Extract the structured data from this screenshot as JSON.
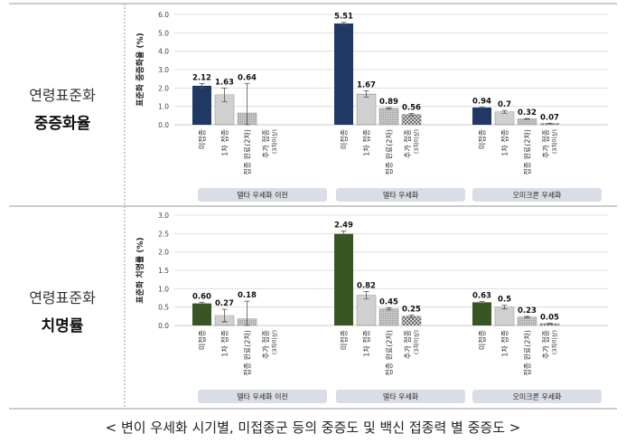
{
  "caption": "< 변이 우세화 시기별, 미접종군 등의 중증도 및 백신 접종력 별 중증도 >",
  "colors": {
    "severe_unvaccinated": "#1f3864",
    "death_unvaccinated": "#375623",
    "panel_label_bg": "#d9dde6",
    "error_bar": "#555555"
  },
  "charts": [
    {
      "row_label_line1": "연령표준화",
      "row_label_line2": "중증화율",
      "ylabel": "표준화 중증화율 (%)",
      "ylim": [
        0,
        6.0
      ],
      "yticks": [
        "6.0",
        "5.0",
        "4.0",
        "3.0",
        "2.0",
        "1.0",
        "0.0"
      ],
      "categories": [
        "미접종",
        "1차 접종",
        "접종 완료(2차)",
        "추가 접종(3차이상)"
      ],
      "category_lines": [
        [
          "미접종"
        ],
        [
          "1차 접종"
        ],
        [
          "접종 완료(2차)"
        ],
        [
          "추가 접종",
          "(3차이상)"
        ]
      ],
      "panels": [
        {
          "name": "델타 우세화 이전",
          "values": [
            2.12,
            1.63,
            0.64,
            null
          ],
          "labels": [
            "2.12",
            "1.63",
            "0.64",
            ""
          ],
          "err": [
            [
              2.0,
              2.24
            ],
            [
              1.25,
              2.0
            ],
            [
              0.0,
              2.25
            ],
            null
          ]
        },
        {
          "name": "델타 우세화",
          "values": [
            5.51,
            1.67,
            0.89,
            0.56
          ],
          "labels": [
            "5.51",
            "1.67",
            "0.89",
            "0.56"
          ],
          "err": [
            [
              5.45,
              5.57
            ],
            [
              1.5,
              1.85
            ],
            [
              0.85,
              0.93
            ],
            [
              0.5,
              0.62
            ]
          ]
        },
        {
          "name": "오미크론 우세화",
          "values": [
            0.94,
            0.7,
            0.32,
            0.07
          ],
          "labels": [
            "0.94",
            "0.7",
            "0.32",
            "0.07"
          ],
          "err": [
            [
              0.91,
              0.97
            ],
            [
              0.62,
              0.78
            ],
            [
              0.3,
              0.34
            ],
            [
              0.06,
              0.08
            ]
          ]
        }
      ]
    },
    {
      "row_label_line1": "연령표준화",
      "row_label_line2": "치명률",
      "ylabel": "표준화 치명률 (%)",
      "ylim": [
        0,
        3.0
      ],
      "yticks": [
        "3.0",
        "2.5",
        "2.0",
        "1.5",
        "1.0",
        "0.5",
        "0.0"
      ],
      "categories": [
        "미접종",
        "1차 접종",
        "접종 완료(2차)",
        "추가 접종(3차이상)"
      ],
      "category_lines": [
        [
          "미접종"
        ],
        [
          "1차 접종"
        ],
        [
          "접종 완료(2차)"
        ],
        [
          "추가 접종",
          "(3차이상)"
        ]
      ],
      "panels": [
        {
          "name": "델타 우세화 이전",
          "values": [
            0.6,
            0.27,
            0.18,
            null
          ],
          "labels": [
            "0.60",
            "0.27",
            "0.18",
            ""
          ],
          "err": [
            [
              0.57,
              0.63
            ],
            [
              0.1,
              0.44
            ],
            [
              0.0,
              0.66
            ],
            null
          ]
        },
        {
          "name": "델타 우세화",
          "values": [
            2.49,
            0.82,
            0.45,
            0.25
          ],
          "labels": [
            "2.49",
            "0.82",
            "0.45",
            "0.25"
          ],
          "err": [
            [
              2.41,
              2.57
            ],
            [
              0.72,
              0.92
            ],
            [
              0.42,
              0.48
            ],
            [
              0.22,
              0.28
            ]
          ]
        },
        {
          "name": "오미크론 우세화",
          "values": [
            0.63,
            0.5,
            0.23,
            0.05
          ],
          "labels": [
            "0.63",
            "0.5",
            "0.23",
            "0.05"
          ],
          "err": [
            [
              0.61,
              0.65
            ],
            [
              0.45,
              0.55
            ],
            [
              0.21,
              0.25
            ],
            [
              0.04,
              0.06
            ]
          ]
        }
      ]
    }
  ],
  "chart_data": [
    {
      "type": "bar",
      "title": "",
      "ylabel": "표준화 중증화율 (%)",
      "ylim": [
        0,
        6.0
      ],
      "categories": [
        "미접종",
        "1차 접종",
        "접종 완료(2차)",
        "추가 접종(3차이상)"
      ],
      "series": [
        {
          "name": "델타 우세화 이전",
          "values": [
            2.12,
            1.63,
            0.64,
            null
          ]
        },
        {
          "name": "델타 우세화",
          "values": [
            5.51,
            1.67,
            0.89,
            0.56
          ]
        },
        {
          "name": "오미크론 우세화",
          "values": [
            0.94,
            0.7,
            0.32,
            0.07
          ]
        }
      ],
      "grid": true
    },
    {
      "type": "bar",
      "title": "",
      "ylabel": "표준화 치명률 (%)",
      "ylim": [
        0,
        3.0
      ],
      "categories": [
        "미접종",
        "1차 접종",
        "접종 완료(2차)",
        "추가 접종(3차이상)"
      ],
      "series": [
        {
          "name": "델타 우세화 이전",
          "values": [
            0.6,
            0.27,
            0.18,
            null
          ]
        },
        {
          "name": "델타 우세화",
          "values": [
            2.49,
            0.82,
            0.45,
            0.25
          ]
        },
        {
          "name": "오미크론 우세화",
          "values": [
            0.63,
            0.5,
            0.23,
            0.05
          ]
        }
      ],
      "grid": true
    }
  ]
}
